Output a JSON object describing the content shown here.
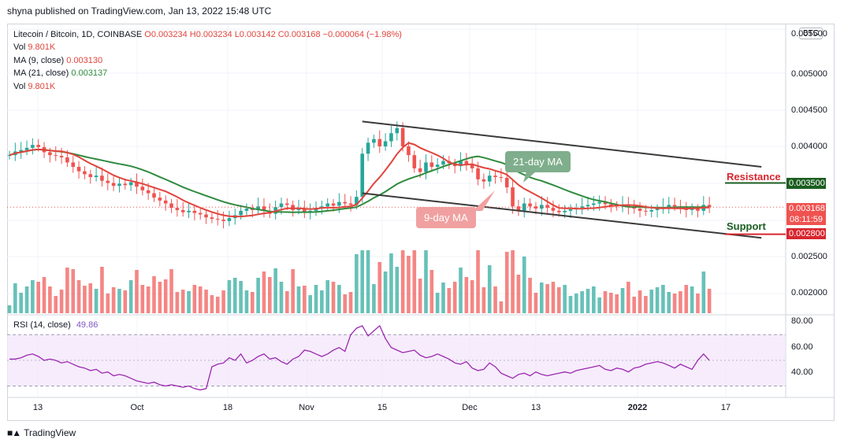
{
  "header": {
    "publisher_line": "shyna published on TradingView.com, Jan 13, 2022 15:48 UTC"
  },
  "legend": {
    "symbol": "Litecoin / Bitcoin, 1D, COINBASE",
    "open": "O0.003234",
    "high": "H0.003234",
    "low": "L0.003142",
    "close": "C0.003168",
    "change": "−0.000064 (−1.98%)",
    "vol_label": "Vol",
    "vol_value": "9.801K",
    "ma9_label": "MA (9, close)",
    "ma9_value": "0.003130",
    "ma21_label": "MA (21, close)",
    "ma21_value": "0.003137",
    "vol2_label": "Vol",
    "vol2_value": "9.801K"
  },
  "rsi_legend": {
    "label": "RSI (14, close)",
    "value": "49.86"
  },
  "currency_badge": "BTC",
  "annotations": {
    "ma21": "21-day MA",
    "ma9": "9-day MA",
    "resistance": "Resistance",
    "support": "Support"
  },
  "price_tags": {
    "resistance": "0.003500",
    "current": "0.003168",
    "countdown": "08:11:59",
    "support": "0.002800"
  },
  "colors": {
    "up": "#26a69a",
    "down": "#ef5350",
    "ma9": "#e0443c",
    "ma21": "#2e8b3e",
    "rsi": "#9c27b0",
    "resistance": "#d8262f",
    "support": "#1b5e20"
  },
  "footer": {
    "logo_text": "TradingView"
  },
  "chart_data": {
    "type": "candlestick",
    "price_axis": {
      "ticks": [
        "0.005500",
        "0.005000",
        "0.004500",
        "0.004000",
        "0.003500",
        "0.002500",
        "0.002000"
      ],
      "tick_values": [
        0.0055,
        0.005,
        0.0045,
        0.004,
        0.0035,
        0.0025,
        0.002
      ]
    },
    "rsi_axis": {
      "ticks": [
        "80.00",
        "60.00",
        "40.00"
      ],
      "tick_values": [
        80,
        60,
        40
      ],
      "band": [
        30,
        70
      ]
    },
    "x_axis": {
      "ticks": [
        "13",
        "Oct",
        "18",
        "Nov",
        "15",
        "Dec",
        "13",
        "2022",
        "17"
      ]
    },
    "x_dates": [
      "2021-09-13",
      "2021-10-01",
      "2021-10-18",
      "2021-11-01",
      "2021-11-15",
      "2021-12-01",
      "2021-12-13",
      "2022-01-01",
      "2022-01-17"
    ],
    "channel": {
      "upper": [
        [
          "2021-11-08",
          0.00434
        ],
        [
          "2022-01-16",
          0.00372
        ]
      ],
      "lower": [
        [
          "2021-11-08",
          0.00336
        ],
        [
          "2022-01-16",
          0.00275
        ]
      ]
    },
    "closes": [
      0.00388,
      0.00393,
      0.00395,
      0.00398,
      0.00402,
      0.00399,
      0.00392,
      0.00388,
      0.00387,
      0.00385,
      0.00378,
      0.00372,
      0.00366,
      0.00362,
      0.00358,
      0.0036,
      0.00353,
      0.0035,
      0.00346,
      0.00349,
      0.00347,
      0.00351,
      0.00345,
      0.0034,
      0.00336,
      0.0033,
      0.00326,
      0.00322,
      0.00316,
      0.00313,
      0.0031,
      0.00312,
      0.00309,
      0.00307,
      0.00303,
      0.00301,
      0.003,
      0.00298,
      0.00302,
      0.00306,
      0.00312,
      0.00315,
      0.00313,
      0.00318,
      0.00312,
      0.00308,
      0.00317,
      0.00322,
      0.0032,
      0.00313,
      0.00315,
      0.0031,
      0.00312,
      0.00316,
      0.00318,
      0.00322,
      0.00319,
      0.00324,
      0.00322,
      0.0032,
      0.00331,
      0.0039,
      0.00405,
      0.0041,
      0.004,
      0.00407,
      0.00418,
      0.00425,
      0.004,
      0.00388,
      0.0037,
      0.00365,
      0.00378,
      0.00372,
      0.00375,
      0.0038,
      0.00377,
      0.00373,
      0.0038,
      0.00376,
      0.0037,
      0.00355,
      0.00352,
      0.0036,
      0.00358,
      0.00357,
      0.00344,
      0.00318,
      0.00312,
      0.00322,
      0.00318,
      0.00315,
      0.0032,
      0.00316,
      0.00312,
      0.0031,
      0.00312,
      0.00314,
      0.00316,
      0.00318,
      0.0032,
      0.00322,
      0.00324,
      0.00321,
      0.00319,
      0.00318,
      0.0032,
      0.00317,
      0.00315,
      0.00312,
      0.00311,
      0.00313,
      0.00315,
      0.00317,
      0.0032,
      0.00318,
      0.00316,
      0.00313,
      0.00315,
      0.00312,
      0.0032,
      0.00317
    ],
    "rsi": [
      51,
      51,
      52,
      54,
      55,
      53,
      50,
      51,
      50,
      48,
      49,
      47,
      45,
      44,
      42,
      43,
      40,
      41,
      38,
      39,
      38,
      36,
      34,
      33,
      32,
      33,
      31,
      30,
      31,
      30,
      29,
      30,
      28,
      27,
      28,
      45,
      47,
      48,
      52,
      50,
      55,
      48,
      50,
      53,
      55,
      51,
      52,
      49,
      47,
      51,
      53,
      58,
      57,
      55,
      53,
      55,
      58,
      60,
      57,
      70,
      75,
      77,
      69,
      73,
      77,
      67,
      60,
      58,
      56,
      57,
      58,
      54,
      52,
      53,
      55,
      53,
      51,
      48,
      47,
      49,
      44,
      42,
      43,
      48,
      45,
      40,
      38,
      36,
      39,
      40,
      38,
      41,
      39,
      38,
      39,
      40,
      41,
      40,
      42,
      43,
      44,
      45,
      46,
      43,
      42,
      44,
      43,
      41,
      44,
      45,
      47,
      48,
      49,
      48,
      46,
      44,
      47,
      45,
      43,
      50,
      55,
      50
    ]
  }
}
